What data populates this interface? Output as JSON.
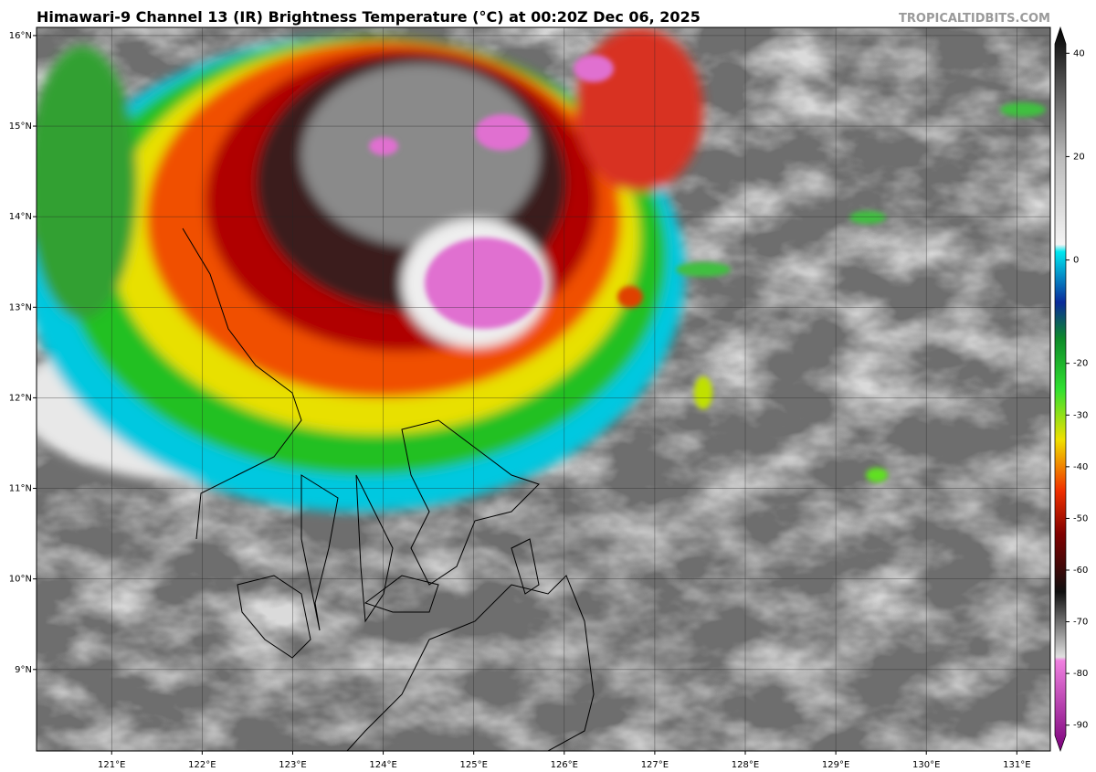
{
  "header": {
    "title": "Himawari-9 Channel 13 (IR) Brightness Temperature (°C) at 00:20Z Dec 06, 2025",
    "credit": "TROPICALTIDBITS.COM"
  },
  "map": {
    "lon_range": [
      120.17,
      131.37
    ],
    "lat_range": [
      8.1,
      16.09
    ],
    "lon_ticks": [
      {
        "value": 121,
        "label": "121°E"
      },
      {
        "value": 122,
        "label": "122°E"
      },
      {
        "value": 123,
        "label": "123°E"
      },
      {
        "value": 124,
        "label": "124°E"
      },
      {
        "value": 125,
        "label": "125°E"
      },
      {
        "value": 126,
        "label": "126°E"
      },
      {
        "value": 127,
        "label": "127°E"
      },
      {
        "value": 128,
        "label": "128°E"
      },
      {
        "value": 129,
        "label": "129°E"
      },
      {
        "value": 130,
        "label": "130°E"
      },
      {
        "value": 131,
        "label": "131°E"
      }
    ],
    "lat_ticks": [
      {
        "value": 9,
        "label": "9°N"
      },
      {
        "value": 10,
        "label": "10°N"
      },
      {
        "value": 11,
        "label": "11°N"
      },
      {
        "value": 12,
        "label": "12°N"
      },
      {
        "value": 13,
        "label": "13°N"
      },
      {
        "value": 14,
        "label": "14°N"
      },
      {
        "value": 15,
        "label": "15°N"
      },
      {
        "value": 16,
        "label": "16°N"
      }
    ]
  },
  "colorbar": {
    "range": [
      -95,
      45
    ],
    "ticks": [
      40,
      20,
      0,
      -20,
      -30,
      -40,
      -50,
      -60,
      -70,
      -80,
      -90
    ]
  }
}
